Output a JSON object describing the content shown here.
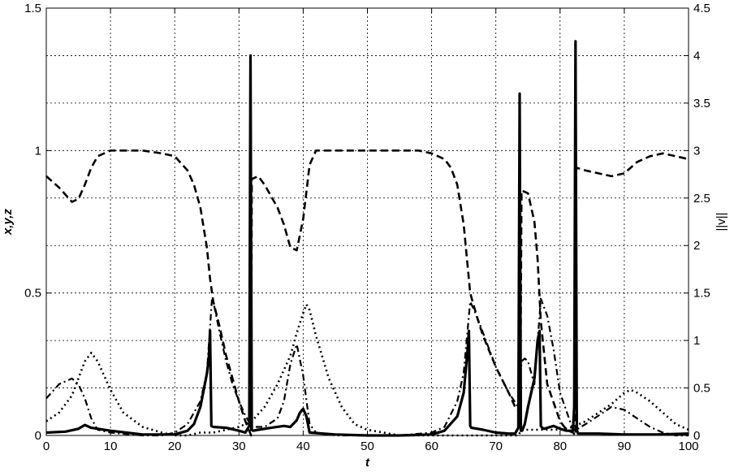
{
  "chart_data": {
    "type": "line",
    "title": "",
    "xlabel": "t",
    "ylabel": "x,y,z",
    "y2label": "||v||",
    "xlim": [
      0,
      100
    ],
    "ylim": [
      0,
      1.5
    ],
    "y2lim": [
      0,
      4.5
    ],
    "grid": true,
    "grid_style": "dotted",
    "legend": "none",
    "xticks": [
      "0",
      "10",
      "20",
      "30",
      "40",
      "50",
      "60",
      "70",
      "80",
      "90",
      "100"
    ],
    "yticks": [
      "0",
      "0.5",
      "1",
      "1.5"
    ],
    "y2ticks": [
      "0",
      "0.5",
      "1",
      "1.5",
      "2",
      "2.5",
      "3",
      "3.5",
      "4",
      "4.5"
    ],
    "series": [
      {
        "style": "dashed",
        "axis": "left",
        "color": "#000000",
        "x": [
          0,
          2,
          4,
          5,
          6,
          7,
          8,
          9,
          10,
          12,
          15,
          18,
          20,
          22,
          23,
          24,
          25,
          25.5,
          26,
          27,
          28,
          29,
          30,
          31,
          31.9,
          32,
          33,
          34,
          35,
          36,
          37,
          38,
          39,
          40,
          41,
          42,
          45,
          50,
          55,
          58,
          60,
          62,
          63,
          64,
          65,
          65.5,
          66,
          67,
          68,
          70,
          72,
          73,
          73.8,
          74,
          75,
          76,
          76.5,
          77,
          78,
          80,
          81,
          82,
          82.4,
          82.5,
          84,
          86,
          88,
          90,
          92,
          94,
          96,
          98,
          100
        ],
        "y": [
          0.91,
          0.87,
          0.82,
          0.83,
          0.88,
          0.94,
          0.98,
          0.99,
          1.0,
          1.0,
          1.0,
          0.99,
          0.98,
          0.93,
          0.88,
          0.8,
          0.66,
          0.55,
          0.47,
          0.38,
          0.28,
          0.2,
          0.12,
          0.05,
          0.0,
          0.9,
          0.91,
          0.88,
          0.84,
          0.8,
          0.74,
          0.66,
          0.65,
          0.76,
          0.95,
          1.0,
          1.0,
          1.0,
          1.0,
          1.0,
          0.99,
          0.97,
          0.94,
          0.88,
          0.74,
          0.62,
          0.5,
          0.42,
          0.35,
          0.24,
          0.15,
          0.1,
          0.08,
          0.86,
          0.85,
          0.75,
          0.62,
          0.4,
          0.18,
          0.05,
          0.02,
          0.01,
          0.0,
          0.94,
          0.93,
          0.92,
          0.91,
          0.92,
          0.96,
          0.98,
          0.99,
          0.98,
          0.97
        ]
      },
      {
        "style": "dashdot",
        "axis": "left",
        "color": "#000000",
        "x": [
          0,
          2,
          3,
          4,
          5,
          6,
          7,
          8,
          10,
          15,
          18,
          20,
          22,
          24,
          25,
          25.8,
          26,
          27,
          28,
          29,
          30,
          31,
          32,
          34,
          36,
          37,
          38,
          39,
          40,
          41,
          42,
          45,
          50,
          55,
          60,
          62,
          64,
          65,
          66,
          67,
          68,
          70,
          72,
          73.5,
          74,
          74.5,
          75,
          76,
          77,
          78,
          79,
          80,
          82,
          82.5,
          84,
          86,
          88,
          90,
          92,
          94,
          96,
          98,
          100
        ],
        "y": [
          0.13,
          0.18,
          0.19,
          0.2,
          0.18,
          0.13,
          0.06,
          0.02,
          0.01,
          0.0,
          0.0,
          0.01,
          0.04,
          0.12,
          0.22,
          0.48,
          0.47,
          0.36,
          0.26,
          0.18,
          0.12,
          0.07,
          0.03,
          0.03,
          0.06,
          0.12,
          0.25,
          0.32,
          0.21,
          0.04,
          0.01,
          0.0,
          0.0,
          0.0,
          0.01,
          0.03,
          0.12,
          0.22,
          0.47,
          0.42,
          0.36,
          0.24,
          0.15,
          0.1,
          0.26,
          0.27,
          0.26,
          0.18,
          0.48,
          0.42,
          0.3,
          0.15,
          0.02,
          0.02,
          0.04,
          0.07,
          0.1,
          0.09,
          0.06,
          0.03,
          0.01,
          0.0,
          0.0
        ]
      },
      {
        "style": "dotted",
        "axis": "left",
        "color": "#000000",
        "x": [
          0,
          2,
          4,
          6,
          7,
          8,
          10,
          12,
          15,
          18,
          20,
          22,
          24,
          26,
          28,
          30,
          32,
          34,
          36,
          38,
          39,
          40,
          40.5,
          41,
          42,
          44,
          46,
          48,
          50,
          55,
          60,
          65,
          70,
          73.5,
          74,
          76,
          78,
          80,
          82,
          84,
          86,
          88,
          90,
          91,
          92,
          94,
          96,
          98,
          100
        ],
        "y": [
          0.05,
          0.08,
          0.14,
          0.26,
          0.29,
          0.26,
          0.16,
          0.08,
          0.03,
          0.01,
          0.0,
          0.0,
          0.01,
          0.01,
          0.02,
          0.03,
          0.05,
          0.1,
          0.18,
          0.28,
          0.36,
          0.43,
          0.46,
          0.44,
          0.35,
          0.2,
          0.1,
          0.04,
          0.02,
          0.0,
          0.0,
          0.0,
          0.0,
          0.0,
          0.02,
          0.02,
          0.02,
          0.02,
          0.03,
          0.05,
          0.08,
          0.11,
          0.15,
          0.16,
          0.15,
          0.12,
          0.08,
          0.04,
          0.02
        ]
      },
      {
        "style": "solid",
        "axis": "right",
        "color": "#000000",
        "x": [
          0,
          3,
          5,
          6,
          7,
          10,
          15,
          20,
          22,
          23,
          24,
          25,
          25.3,
          25.5,
          25.7,
          26,
          28,
          30,
          31,
          31.6,
          31.8,
          32,
          32.2,
          33,
          35,
          37,
          38,
          39,
          39.5,
          40,
          40.5,
          41,
          45,
          50,
          55,
          60,
          62,
          64,
          65,
          65.6,
          65.8,
          66,
          66.2,
          68,
          70,
          72,
          73,
          73.5,
          73.7,
          73.9,
          74.1,
          74.5,
          75,
          76,
          76.5,
          76.8,
          77,
          77.2,
          77.5,
          78,
          79,
          80,
          81,
          82,
          82.2,
          82.4,
          82.6,
          82.8,
          84,
          86,
          90,
          95,
          100
        ],
        "y": [
          0.03,
          0.04,
          0.07,
          0.11,
          0.08,
          0.05,
          0.01,
          0.01,
          0.05,
          0.12,
          0.3,
          0.65,
          0.8,
          1.1,
          0.1,
          0.09,
          0.08,
          0.05,
          0.03,
          0.1,
          4.0,
          0.06,
          0.05,
          0.06,
          0.08,
          0.1,
          0.09,
          0.16,
          0.24,
          0.28,
          0.2,
          0.03,
          0.01,
          0.0,
          0.0,
          0.01,
          0.05,
          0.2,
          0.45,
          0.9,
          1.1,
          0.1,
          0.08,
          0.06,
          0.03,
          0.02,
          0.02,
          0.08,
          3.6,
          0.05,
          0.05,
          0.12,
          0.3,
          0.6,
          1.0,
          1.1,
          0.1,
          0.08,
          0.07,
          0.08,
          0.1,
          0.07,
          0.05,
          0.05,
          0.3,
          4.15,
          0.06,
          0.02,
          0.02,
          0.02,
          0.01,
          0.01,
          0.02
        ]
      }
    ]
  }
}
